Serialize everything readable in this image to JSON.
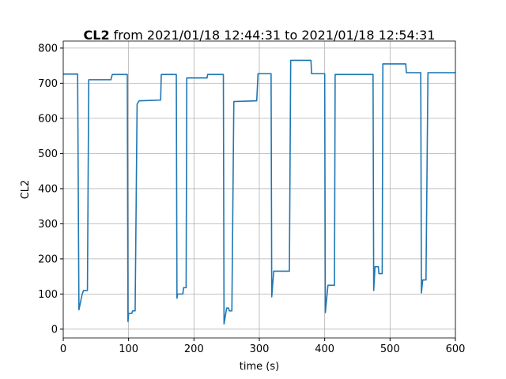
{
  "chart_data": {
    "type": "line",
    "title_bold": "CL2",
    "title": "from 2021/01/18 12:44:31 to 2021/01/18 12:54:31",
    "x_label": "time (s)",
    "y_label": "CL2",
    "xlim": [
      0,
      600
    ],
    "ylim": [
      -25,
      820
    ],
    "xticks": [
      0,
      100,
      200,
      300,
      400,
      500,
      600
    ],
    "yticks": [
      0,
      100,
      200,
      300,
      400,
      500,
      600,
      700,
      800
    ],
    "grid": true,
    "series": [
      {
        "name": "CL2",
        "color": "#1f77b4",
        "x": [
          0,
          22,
          24,
          29,
          31,
          37,
          39,
          60,
          73,
          75,
          98,
          99,
          100,
          105,
          106,
          110,
          113,
          116,
          149,
          150,
          173,
          174,
          175,
          183,
          184,
          188,
          189,
          220,
          221,
          245,
          246,
          250,
          253,
          254,
          258,
          261,
          296,
          298,
          318,
          319,
          322,
          346,
          348,
          379,
          380,
          400,
          401,
          405,
          415,
          416,
          474,
          475,
          477,
          482,
          483,
          488,
          489,
          524,
          525,
          547,
          548,
          550,
          555,
          558,
          600
        ],
        "values": [
          726,
          726,
          55,
          100,
          110,
          110,
          710,
          710,
          710,
          725,
          725,
          22,
          45,
          45,
          52,
          52,
          640,
          650,
          652,
          725,
          725,
          88,
          100,
          100,
          118,
          118,
          715,
          715,
          725,
          725,
          15,
          60,
          60,
          52,
          52,
          648,
          650,
          727,
          727,
          92,
          165,
          165,
          765,
          765,
          727,
          727,
          47,
          125,
          125,
          725,
          725,
          110,
          178,
          178,
          158,
          158,
          755,
          755,
          730,
          730,
          103,
          140,
          140,
          730,
          730
        ]
      }
    ]
  }
}
